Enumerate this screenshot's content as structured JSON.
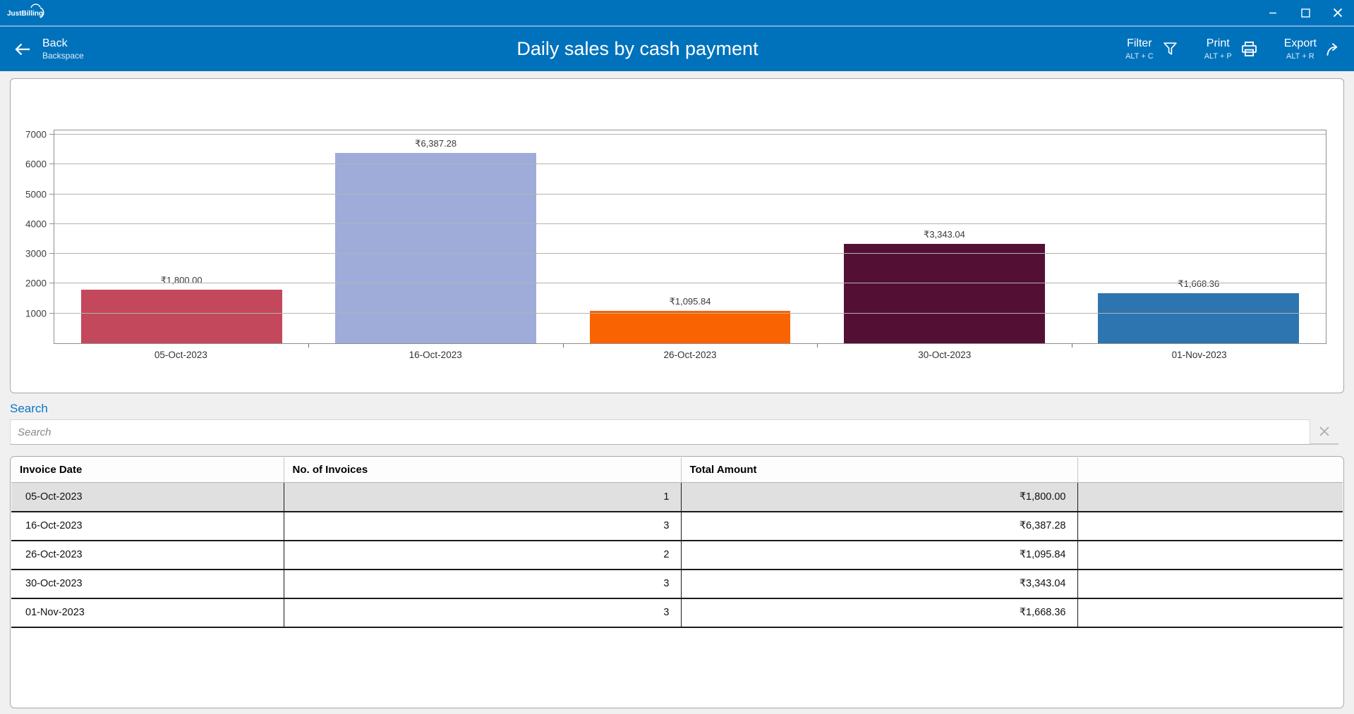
{
  "app": {
    "name": "JustBilling"
  },
  "nav": {
    "back_label": "Back",
    "back_shortcut": "Backspace",
    "title": "Daily sales by cash payment",
    "actions": [
      {
        "label": "Filter",
        "shortcut": "ALT + C",
        "icon": "filter-icon"
      },
      {
        "label": "Print",
        "shortcut": "ALT + P",
        "icon": "print-icon"
      },
      {
        "label": "Export",
        "shortcut": "ALT + R",
        "icon": "export-icon"
      }
    ]
  },
  "chart_data": {
    "type": "bar",
    "title": "",
    "categories": [
      "05-Oct-2023",
      "16-Oct-2023",
      "26-Oct-2023",
      "30-Oct-2023",
      "01-Nov-2023"
    ],
    "values": [
      1800.0,
      6387.28,
      1095.84,
      3343.04,
      1668.36
    ],
    "value_labels": [
      "₹1,800.00",
      "₹6,387.28",
      "₹1,095.84",
      "₹3,343.04",
      "₹1,668.36"
    ],
    "bar_colors": [
      "#c4485c",
      "#9facda",
      "#f96302",
      "#531034",
      "#2c75b0"
    ],
    "y_ticks": [
      7000,
      6000,
      5000,
      4000,
      3000,
      2000,
      1000
    ],
    "ylim": [
      0,
      7000
    ],
    "xlabel": "",
    "ylabel": "",
    "grid": true,
    "legend": false
  },
  "search": {
    "label": "Search",
    "placeholder": "Search",
    "value": ""
  },
  "table": {
    "columns": [
      "Invoice Date",
      "No. of Invoices",
      "Total Amount",
      ""
    ],
    "rows": [
      {
        "invoice_date": "05-Oct-2023",
        "no_of_invoices": "1",
        "total_amount": "₹1,800.00",
        "selected": true
      },
      {
        "invoice_date": "16-Oct-2023",
        "no_of_invoices": "3",
        "total_amount": "₹6,387.28",
        "selected": false
      },
      {
        "invoice_date": "26-Oct-2023",
        "no_of_invoices": "2",
        "total_amount": "₹1,095.84",
        "selected": false
      },
      {
        "invoice_date": "30-Oct-2023",
        "no_of_invoices": "3",
        "total_amount": "₹3,343.04",
        "selected": false
      },
      {
        "invoice_date": "01-Nov-2023",
        "no_of_invoices": "3",
        "total_amount": "₹1,668.36",
        "selected": false
      }
    ]
  },
  "colors": {
    "header_blue": "#0072bc",
    "header_separator": "#7aadd8",
    "page_bg": "#f0f0f0",
    "selected_row_bg": "#e0e0e0",
    "search_label_blue": "#0b76c4"
  }
}
